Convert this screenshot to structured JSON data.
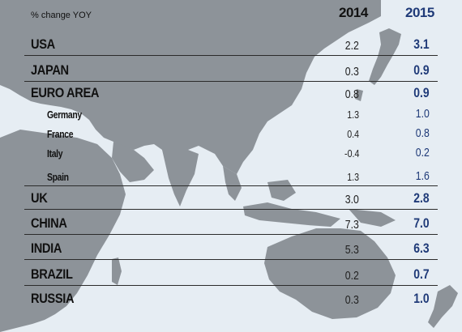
{
  "colors": {
    "background": "#e6edf3",
    "land": "#8d9399",
    "text": "#111111",
    "value_2015": "#1f3a78"
  },
  "chart_data": {
    "type": "table",
    "title": "",
    "unit_label": "% change YOY",
    "columns": [
      "2014",
      "2015"
    ],
    "rows": [
      {
        "label": "USA",
        "level": "major",
        "v2014": "2.2",
        "v2015": "3.1"
      },
      {
        "label": "JAPAN",
        "level": "major",
        "v2014": "0.3",
        "v2015": "0.9"
      },
      {
        "label": "EURO AREA",
        "level": "major",
        "v2014": "0.8",
        "v2015": "0.9"
      },
      {
        "label": "Germany",
        "level": "sub",
        "v2014": "1.3",
        "v2015": "1.0"
      },
      {
        "label": "France",
        "level": "sub",
        "v2014": "0.4",
        "v2015": "0.8"
      },
      {
        "label": "Italy",
        "level": "sub",
        "v2014": "-0.4",
        "v2015": "0.2"
      },
      {
        "label": "Spain",
        "level": "sub",
        "v2014": "1.3",
        "v2015": "1.6"
      },
      {
        "label": "UK",
        "level": "major",
        "v2014": "3.0",
        "v2015": "2.8"
      },
      {
        "label": "CHINA",
        "level": "major",
        "v2014": "7.3",
        "v2015": "7.0"
      },
      {
        "label": "INDIA",
        "level": "major",
        "v2014": "5.3",
        "v2015": "6.3"
      },
      {
        "label": "BRAZIL",
        "level": "major",
        "v2014": "0.2",
        "v2015": "0.7"
      },
      {
        "label": "RUSSIA",
        "level": "major",
        "v2014": "0.3",
        "v2015": "1.0"
      }
    ]
  }
}
